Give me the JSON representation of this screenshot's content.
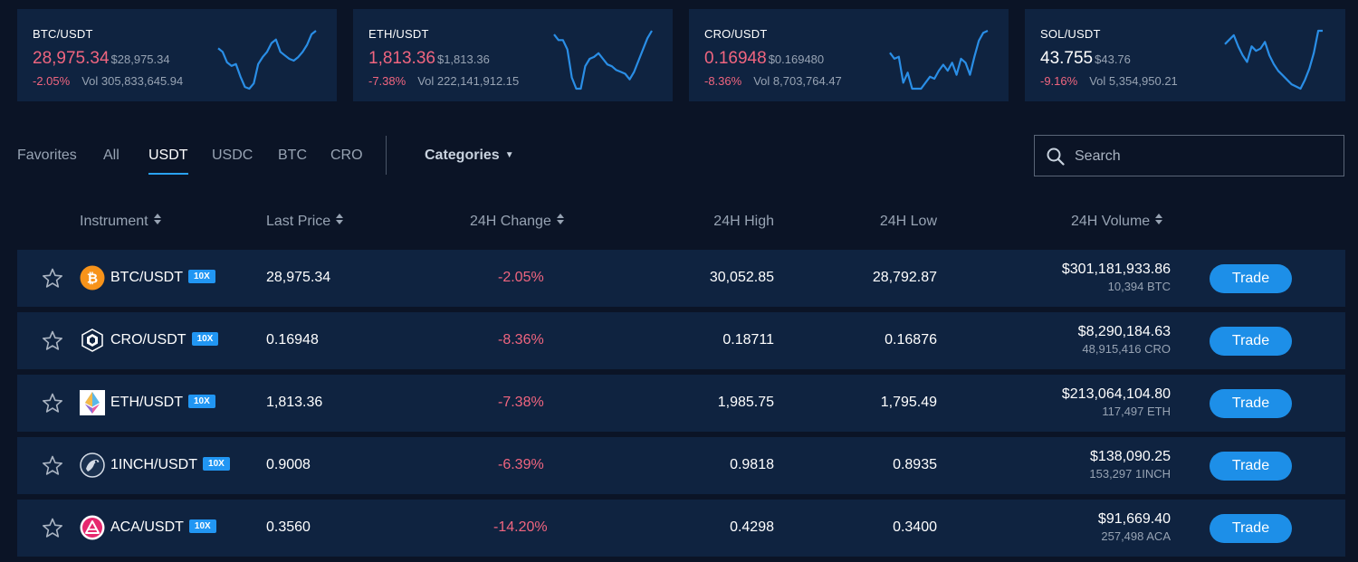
{
  "tickers": [
    {
      "pair": "BTC/USDT",
      "price": "28,975.34",
      "price_usd": "$28,975.34",
      "change": "-2.05%",
      "volume": "Vol 305,833,645.94",
      "trend": "down",
      "spark": [
        40,
        38,
        32,
        30,
        31,
        24,
        18,
        17,
        20,
        31,
        35,
        38,
        43,
        45,
        38,
        36,
        34,
        33,
        35,
        38,
        42,
        48,
        50
      ]
    },
    {
      "pair": "ETH/USDT",
      "price": "1,813.36",
      "price_usd": "$1,813.36",
      "change": "-7.38%",
      "volume": "Vol 222,141,912.15",
      "trend": "down",
      "spark": [
        50,
        47,
        47,
        42,
        27,
        21,
        21,
        33,
        37,
        38,
        40,
        37,
        34,
        33,
        31,
        30,
        29,
        26,
        30,
        36,
        42,
        48,
        52
      ]
    },
    {
      "pair": "CRO/USDT",
      "price": "0.16948",
      "price_usd": "$0.169480",
      "change": "-8.36%",
      "volume": "Vol 8,703,764.47",
      "trend": "down",
      "spark": [
        42,
        39,
        40,
        27,
        32,
        24,
        24,
        24,
        27,
        30,
        29,
        33,
        36,
        33,
        37,
        31,
        39,
        37,
        31,
        40,
        48,
        52,
        53
      ]
    },
    {
      "pair": "SOL/USDT",
      "price": "43.755",
      "price_usd": "$43.76",
      "change": "-9.16%",
      "volume": "Vol 5,354,950.21",
      "trend": "neutral",
      "spark": [
        46,
        48,
        50,
        45,
        41,
        38,
        45,
        43,
        44,
        47,
        41,
        37,
        34,
        32,
        30,
        28,
        27,
        26,
        30,
        35,
        42,
        52,
        52
      ]
    }
  ],
  "tabs": [
    {
      "label": "Favorites"
    },
    {
      "label": "All"
    },
    {
      "label": "USDT"
    },
    {
      "label": "USDC"
    },
    {
      "label": "BTC"
    },
    {
      "label": "CRO"
    }
  ],
  "active_tab": "USDT",
  "categories_label": "Categories",
  "search": {
    "placeholder": "Search"
  },
  "columns": {
    "instrument": "Instrument",
    "last_price": "Last Price",
    "change": "24H Change",
    "high": "24H High",
    "low": "24H Low",
    "volume": "24H Volume"
  },
  "rows": [
    {
      "pair": "BTC/USDT",
      "leverage": "10X",
      "coin_icon": "btc-icon",
      "last": "28,975.34",
      "change": "-2.05%",
      "high": "30,052.85",
      "low": "28,792.87",
      "vol_usd": "$301,181,933.86",
      "vol_base": "10,394 BTC",
      "trade": "Trade"
    },
    {
      "pair": "CRO/USDT",
      "leverage": "10X",
      "coin_icon": "cro-icon",
      "last": "0.16948",
      "change": "-8.36%",
      "high": "0.18711",
      "low": "0.16876",
      "vol_usd": "$8,290,184.63",
      "vol_base": "48,915,416 CRO",
      "trade": "Trade"
    },
    {
      "pair": "ETH/USDT",
      "leverage": "10X",
      "coin_icon": "eth-icon",
      "last": "1,813.36",
      "change": "-7.38%",
      "high": "1,985.75",
      "low": "1,795.49",
      "vol_usd": "$213,064,104.80",
      "vol_base": "117,497 ETH",
      "trade": "Trade"
    },
    {
      "pair": "1INCH/USDT",
      "leverage": "10X",
      "coin_icon": "1inch-icon",
      "last": "0.9008",
      "change": "-6.39%",
      "high": "0.9818",
      "low": "0.8935",
      "vol_usd": "$138,090.25",
      "vol_base": "153,297 1INCH",
      "trade": "Trade"
    },
    {
      "pair": "ACA/USDT",
      "leverage": "10X",
      "coin_icon": "aca-icon",
      "last": "0.3560",
      "change": "-14.20%",
      "high": "0.4298",
      "low": "0.3400",
      "vol_usd": "$91,669.40",
      "vol_base": "257,498 ACA",
      "trade": "Trade"
    }
  ],
  "colors": {
    "background": "#0b1426",
    "card": "#0f2340",
    "negative": "#f0657f",
    "accent": "#1d8fe8",
    "sparkline": "#2a8ee6"
  }
}
